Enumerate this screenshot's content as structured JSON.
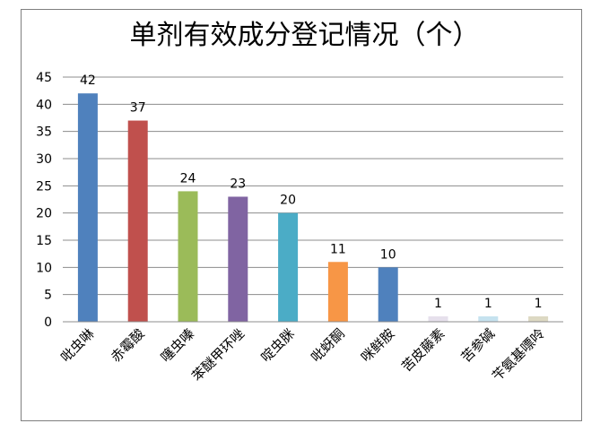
{
  "chart_data": {
    "type": "bar",
    "title": "单剂有效成分登记情况（个）",
    "xlabel": "",
    "ylabel": "",
    "categories": [
      "吡虫啉",
      "赤霉酸",
      "噻虫嗪",
      "苯醚甲环唑",
      "啶虫脒",
      "吡蚜酮",
      "咪鲜胺",
      "苦皮藤素",
      "苦参碱",
      "苄氨基嘌呤"
    ],
    "values": [
      42,
      37,
      24,
      23,
      20,
      11,
      10,
      1,
      1,
      1
    ],
    "colors": [
      "#4f81bd",
      "#c0504d",
      "#9bbb59",
      "#8064a2",
      "#4bacc6",
      "#f79646",
      "#4f81bd",
      "#e6e0ec",
      "#c6e2ef",
      "#ddd9c3"
    ],
    "ylim": [
      0,
      45
    ],
    "yticks": [
      0,
      5,
      10,
      15,
      20,
      25,
      30,
      35,
      40,
      45
    ],
    "grid": true,
    "legend": "none"
  }
}
